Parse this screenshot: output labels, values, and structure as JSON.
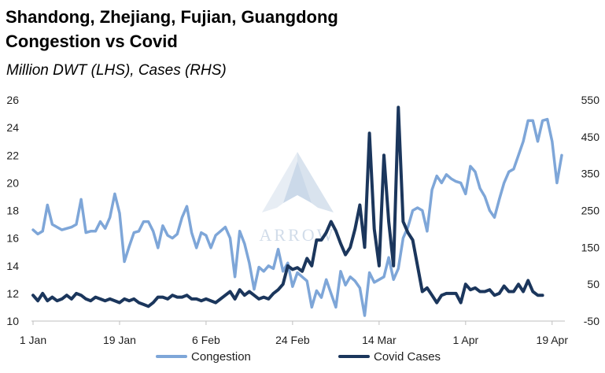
{
  "title_line1": "Shandong, Zhejiang, Fujian, Guangdong",
  "title_line2": "Congestion vs Covid",
  "subtitle": "Million DWT (LHS), Cases (RHS)",
  "watermark": "ARROW",
  "colors": {
    "congestion": "#7ea6d8",
    "covid": "#1b365c",
    "axis": "#bfbfbf",
    "watermark": "#c9d6e6"
  },
  "chart_data": {
    "type": "line",
    "title": "Shandong, Zhejiang, Fujian, Guangdong Congestion vs Covid",
    "xlabel": "",
    "ylabel": "Million DWT (LHS), Cases (RHS)",
    "x_start": "1 Jan",
    "x_step_days": 1,
    "x_ticks": [
      "1 Jan",
      "19 Jan",
      "6 Feb",
      "24 Feb",
      "14 Mar",
      "1 Apr",
      "19 Apr"
    ],
    "y_left": {
      "min": 10,
      "max": 26,
      "ticks": [
        "10",
        "12",
        "14",
        "16",
        "18",
        "20",
        "22",
        "24",
        "26"
      ]
    },
    "y_right": {
      "min": -50,
      "max": 550,
      "ticks": [
        "-50",
        "50",
        "150",
        "250",
        "350",
        "450",
        "550"
      ]
    },
    "grid": false,
    "legend": "bottom",
    "series": [
      {
        "name": "Congestion",
        "axis": "left",
        "values": [
          16.6,
          16.3,
          16.5,
          18.4,
          17.0,
          16.8,
          16.6,
          16.7,
          16.8,
          17.0,
          18.8,
          16.4,
          16.5,
          16.5,
          17.2,
          16.7,
          17.5,
          19.2,
          17.8,
          14.3,
          15.4,
          16.4,
          16.5,
          17.2,
          17.2,
          16.5,
          15.3,
          16.9,
          16.2,
          16.0,
          16.3,
          17.5,
          18.3,
          16.4,
          15.3,
          16.4,
          16.2,
          15.3,
          16.2,
          16.5,
          16.8,
          16.0,
          13.2,
          16.5,
          15.6,
          14.2,
          12.3,
          13.9,
          13.6,
          14.0,
          13.8,
          15.2,
          13.6,
          14.2,
          12.5,
          13.5,
          13.2,
          12.9,
          11.0,
          12.2,
          11.7,
          13.0,
          12.0,
          11.0,
          13.6,
          12.6,
          13.2,
          12.9,
          12.4,
          10.4,
          13.5,
          12.8,
          13.0,
          13.2,
          14.6,
          13.0,
          13.8,
          16.0,
          16.8,
          18.0,
          18.2,
          18.0,
          16.5,
          19.5,
          20.5,
          20.0,
          20.6,
          20.3,
          20.1,
          20.0,
          19.2,
          21.2,
          20.8,
          19.6,
          19.0,
          18.0,
          17.5,
          18.8,
          20.0,
          20.8,
          21.0,
          22.0,
          23.0,
          24.5,
          24.5,
          23.0,
          24.5,
          24.6,
          23.0,
          20.0,
          22.0
        ]
      },
      {
        "name": "Covid Cases",
        "axis": "right",
        "values": [
          20,
          5,
          25,
          5,
          15,
          5,
          10,
          20,
          10,
          25,
          20,
          10,
          5,
          15,
          10,
          5,
          10,
          5,
          0,
          10,
          5,
          10,
          0,
          -5,
          -10,
          0,
          15,
          15,
          10,
          20,
          15,
          15,
          20,
          10,
          10,
          5,
          10,
          5,
          0,
          10,
          20,
          30,
          10,
          35,
          20,
          30,
          20,
          10,
          15,
          10,
          25,
          35,
          50,
          100,
          90,
          95,
          85,
          120,
          100,
          170,
          170,
          190,
          220,
          195,
          160,
          130,
          150,
          200,
          265,
          150,
          460,
          200,
          100,
          400,
          220,
          100,
          530,
          220,
          190,
          170,
          100,
          30,
          40,
          20,
          0,
          20,
          25,
          25,
          25,
          0,
          50,
          35,
          40,
          30,
          30,
          35,
          20,
          25,
          45,
          30,
          30,
          50,
          30,
          60,
          30,
          20,
          20
        ]
      }
    ]
  }
}
